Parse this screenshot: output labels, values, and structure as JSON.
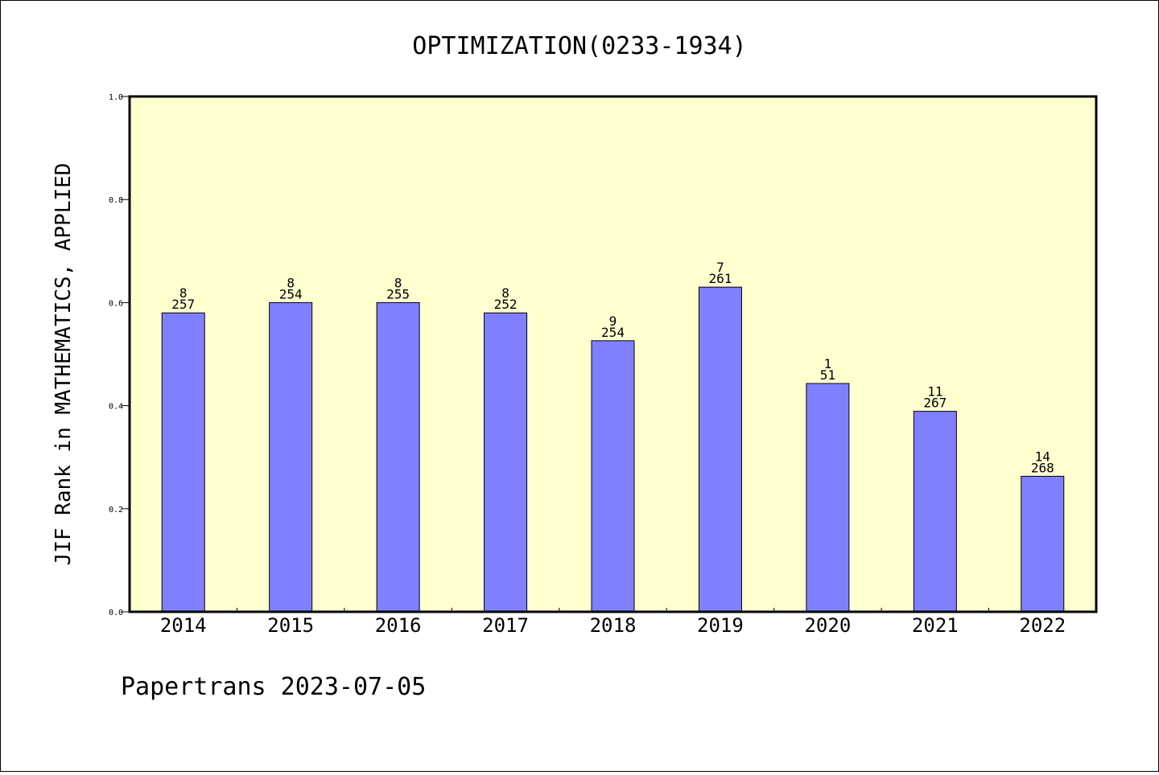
{
  "chart_data": {
    "type": "bar",
    "title": "OPTIMIZATION(0233-1934)",
    "xlabel": "",
    "ylabel": "JIF Rank in MATHEMATICS, APPLIED",
    "ylim": [
      0,
      1.0
    ],
    "yticks": [
      "0.0",
      "0.2",
      "0.4",
      "0.6",
      "0.8",
      "1.0"
    ],
    "categories": [
      "2014",
      "2015",
      "2016",
      "2017",
      "2018",
      "2019",
      "2020",
      "2021",
      "2022"
    ],
    "values": [
      0.58,
      0.6,
      0.6,
      0.58,
      0.526,
      0.63,
      0.443,
      0.389,
      0.263
    ],
    "ranks": [
      "8",
      "8",
      "8",
      "8",
      "9",
      "7",
      "1",
      "11",
      "14"
    ],
    "totals": [
      "257",
      "254",
      "255",
      "252",
      "254",
      "261",
      "51",
      "267",
      "268"
    ],
    "grid": false,
    "colors": {
      "plot_background": "#ffffd0",
      "bar_fill": "#8080ff",
      "bar_stroke": "#000000"
    }
  },
  "footer": "Papertrans 2023-07-05"
}
